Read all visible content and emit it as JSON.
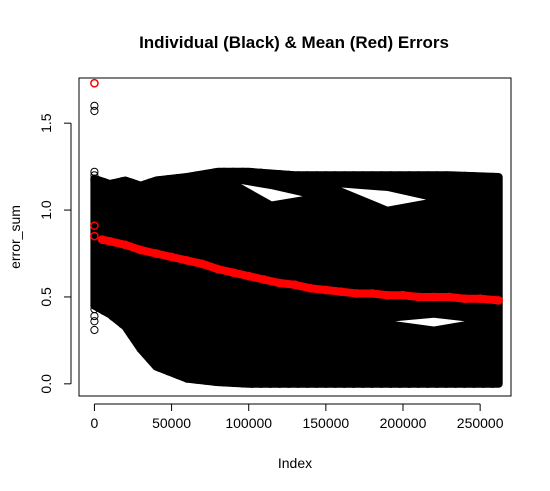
{
  "chart_data": {
    "type": "scatter",
    "title": "Individual (Black) & Mean (Red) Errors",
    "xlabel": "Index",
    "ylabel": "error_sum",
    "xlim": [
      -10000,
      270000
    ],
    "ylim": [
      -0.07,
      1.76
    ],
    "x_ticks": [
      0,
      50000,
      100000,
      150000,
      200000,
      250000
    ],
    "x_tick_labels": [
      "0",
      "50000",
      "100000",
      "150000",
      "200000",
      "250000"
    ],
    "y_ticks": [
      0.0,
      0.5,
      1.0,
      1.5
    ],
    "y_tick_labels": [
      "0.0",
      "0.5",
      "1.0",
      "1.5"
    ],
    "grid": false,
    "legend": "none",
    "series": [
      {
        "color": "#000000",
        "marker": "open-circle",
        "band": {
          "x": [
            0,
            10000,
            20000,
            30000,
            40000,
            60000,
            80000,
            100000,
            130000,
            160000,
            200000,
            230000,
            262000
          ],
          "upper": [
            1.18,
            1.15,
            1.17,
            1.14,
            1.17,
            1.19,
            1.22,
            1.22,
            1.2,
            1.2,
            1.2,
            1.2,
            1.19
          ],
          "lower": [
            0.45,
            0.4,
            0.33,
            0.2,
            0.1,
            0.03,
            0.01,
            0.0,
            0.0,
            0.0,
            0.0,
            0.0,
            0.0
          ]
        },
        "points": [
          {
            "x": 0,
            "y": 1.73
          },
          {
            "x": 0,
            "y": 1.6
          },
          {
            "x": 0,
            "y": 1.57
          },
          {
            "x": 0,
            "y": 1.22
          },
          {
            "x": 0,
            "y": 1.2
          },
          {
            "x": 0,
            "y": 1.17
          },
          {
            "x": 0,
            "y": 0.43
          },
          {
            "x": 0,
            "y": 0.39
          },
          {
            "x": 0,
            "y": 0.36
          },
          {
            "x": 0,
            "y": 0.31
          }
        ]
      },
      {
        "color": "#ff0000",
        "marker": "open-circle",
        "points": [
          {
            "x": 0,
            "y": 1.73
          },
          {
            "x": 0,
            "y": 0.91
          },
          {
            "x": 0,
            "y": 0.85
          },
          {
            "x": 5000,
            "y": 0.83
          },
          {
            "x": 10000,
            "y": 0.82
          },
          {
            "x": 20000,
            "y": 0.8
          },
          {
            "x": 30000,
            "y": 0.77
          },
          {
            "x": 40000,
            "y": 0.75
          },
          {
            "x": 50000,
            "y": 0.73
          },
          {
            "x": 60000,
            "y": 0.71
          },
          {
            "x": 70000,
            "y": 0.69
          },
          {
            "x": 80000,
            "y": 0.66
          },
          {
            "x": 90000,
            "y": 0.64
          },
          {
            "x": 100000,
            "y": 0.62
          },
          {
            "x": 110000,
            "y": 0.6
          },
          {
            "x": 120000,
            "y": 0.58
          },
          {
            "x": 130000,
            "y": 0.57
          },
          {
            "x": 140000,
            "y": 0.55
          },
          {
            "x": 150000,
            "y": 0.54
          },
          {
            "x": 160000,
            "y": 0.53
          },
          {
            "x": 170000,
            "y": 0.52
          },
          {
            "x": 180000,
            "y": 0.52
          },
          {
            "x": 190000,
            "y": 0.51
          },
          {
            "x": 200000,
            "y": 0.51
          },
          {
            "x": 210000,
            "y": 0.5
          },
          {
            "x": 220000,
            "y": 0.5
          },
          {
            "x": 230000,
            "y": 0.5
          },
          {
            "x": 240000,
            "y": 0.49
          },
          {
            "x": 250000,
            "y": 0.49
          },
          {
            "x": 262000,
            "y": 0.48
          }
        ]
      }
    ]
  }
}
